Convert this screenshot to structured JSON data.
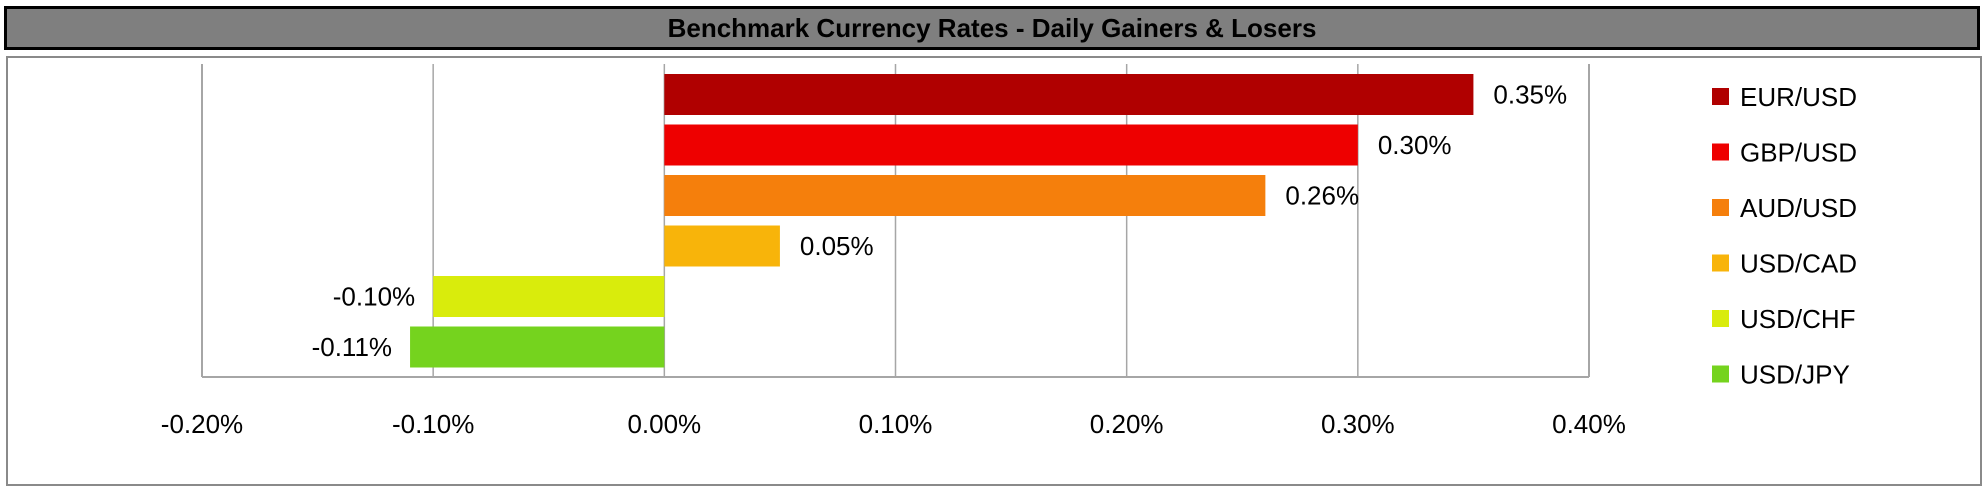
{
  "chart_data": {
    "type": "bar",
    "orientation": "horizontal",
    "title": "Benchmark Currency Rates - Daily Gainers & Losers",
    "xlabel": "",
    "ylabel": "",
    "xlim": [
      -0.2,
      0.4
    ],
    "x_ticks": [
      -0.2,
      -0.1,
      0.0,
      0.1,
      0.2,
      0.3,
      0.4
    ],
    "x_tick_labels": [
      "-0.20%",
      "-0.10%",
      "0.00%",
      "0.10%",
      "0.20%",
      "0.30%",
      "0.40%"
    ],
    "grid": "vertical",
    "legend_position": "right",
    "series": [
      {
        "name": "EUR/USD",
        "value": 0.35,
        "label": "0.35%",
        "color": "#b00000"
      },
      {
        "name": "GBP/USD",
        "value": 0.3,
        "label": "0.30%",
        "color": "#ee0000"
      },
      {
        "name": "AUD/USD",
        "value": 0.26,
        "label": "0.26%",
        "color": "#f57f0c"
      },
      {
        "name": "USD/CAD",
        "value": 0.05,
        "label": "0.05%",
        "color": "#f8b40a"
      },
      {
        "name": "USD/CHF",
        "value": -0.1,
        "label": "-0.10%",
        "color": "#d9ec0c"
      },
      {
        "name": "USD/JPY",
        "value": -0.11,
        "label": "-0.11%",
        "color": "#75d31e"
      }
    ]
  }
}
